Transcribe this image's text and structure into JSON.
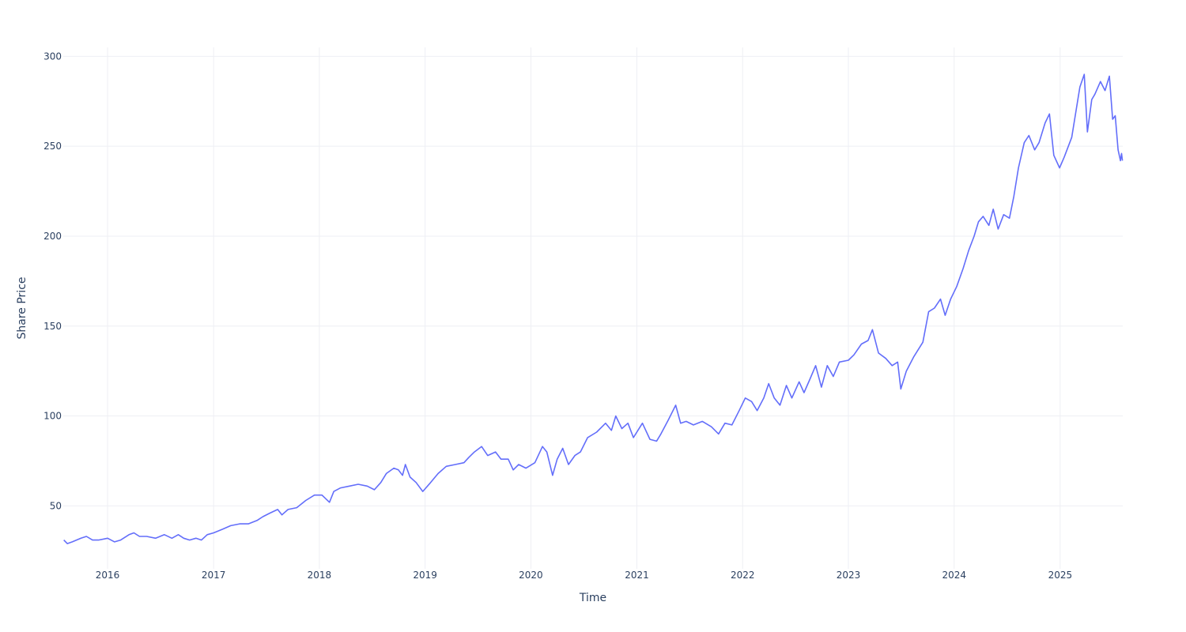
{
  "chart_data": {
    "type": "line",
    "title": "",
    "xlabel": "Time",
    "ylabel": "Share Price",
    "x_range": [
      "2015-08-01",
      "2025-08-05"
    ],
    "ylim": [
      15,
      305
    ],
    "x_ticks": [
      {
        "date": "2016-01-01",
        "label": "2016"
      },
      {
        "date": "2017-01-01",
        "label": "2017"
      },
      {
        "date": "2018-01-01",
        "label": "2018"
      },
      {
        "date": "2019-01-01",
        "label": "2019"
      },
      {
        "date": "2020-01-01",
        "label": "2020"
      },
      {
        "date": "2021-01-01",
        "label": "2021"
      },
      {
        "date": "2022-01-01",
        "label": "2022"
      },
      {
        "date": "2023-01-01",
        "label": "2023"
      },
      {
        "date": "2024-01-01",
        "label": "2024"
      },
      {
        "date": "2025-01-01",
        "label": "2025"
      }
    ],
    "y_ticks": [
      50,
      100,
      150,
      200,
      250,
      300
    ],
    "grid": true,
    "legend": "none",
    "series": [
      {
        "color": "#636efa",
        "points": [
          [
            "2015-08-03",
            31
          ],
          [
            "2015-08-15",
            29
          ],
          [
            "2015-09-01",
            30
          ],
          [
            "2015-10-01",
            32
          ],
          [
            "2015-10-20",
            33
          ],
          [
            "2015-11-10",
            31
          ],
          [
            "2015-12-01",
            31
          ],
          [
            "2016-01-01",
            32
          ],
          [
            "2016-01-25",
            30
          ],
          [
            "2016-02-15",
            31
          ],
          [
            "2016-03-15",
            34
          ],
          [
            "2016-04-01",
            35
          ],
          [
            "2016-04-20",
            33
          ],
          [
            "2016-05-15",
            33
          ],
          [
            "2016-06-15",
            32
          ],
          [
            "2016-07-15",
            34
          ],
          [
            "2016-08-10",
            32
          ],
          [
            "2016-09-01",
            34
          ],
          [
            "2016-09-20",
            32
          ],
          [
            "2016-10-10",
            31
          ],
          [
            "2016-11-01",
            32
          ],
          [
            "2016-11-20",
            31
          ],
          [
            "2016-12-10",
            34
          ],
          [
            "2017-01-01",
            35
          ],
          [
            "2017-02-01",
            37
          ],
          [
            "2017-03-01",
            39
          ],
          [
            "2017-04-01",
            40
          ],
          [
            "2017-05-01",
            40
          ],
          [
            "2017-06-01",
            42
          ],
          [
            "2017-06-20",
            44
          ],
          [
            "2017-07-15",
            46
          ],
          [
            "2017-08-10",
            48
          ],
          [
            "2017-08-25",
            45
          ],
          [
            "2017-09-15",
            48
          ],
          [
            "2017-10-15",
            49
          ],
          [
            "2017-11-15",
            53
          ],
          [
            "2017-12-15",
            56
          ],
          [
            "2018-01-10",
            56
          ],
          [
            "2018-02-05",
            52
          ],
          [
            "2018-02-20",
            58
          ],
          [
            "2018-03-15",
            60
          ],
          [
            "2018-04-15",
            61
          ],
          [
            "2018-05-15",
            62
          ],
          [
            "2018-06-15",
            61
          ],
          [
            "2018-07-10",
            59
          ],
          [
            "2018-08-01",
            63
          ],
          [
            "2018-08-20",
            68
          ],
          [
            "2018-09-15",
            71
          ],
          [
            "2018-10-01",
            70
          ],
          [
            "2018-10-15",
            67
          ],
          [
            "2018-10-25",
            73
          ],
          [
            "2018-11-10",
            66
          ],
          [
            "2018-12-01",
            63
          ],
          [
            "2018-12-24",
            58
          ],
          [
            "2019-01-20",
            63
          ],
          [
            "2019-02-15",
            68
          ],
          [
            "2019-03-15",
            72
          ],
          [
            "2019-04-15",
            73
          ],
          [
            "2019-05-15",
            74
          ],
          [
            "2019-06-01",
            77
          ],
          [
            "2019-06-20",
            80
          ],
          [
            "2019-07-15",
            83
          ],
          [
            "2019-08-05",
            78
          ],
          [
            "2019-09-01",
            80
          ],
          [
            "2019-09-20",
            76
          ],
          [
            "2019-10-15",
            76
          ],
          [
            "2019-11-01",
            70
          ],
          [
            "2019-11-20",
            73
          ],
          [
            "2019-12-15",
            71
          ],
          [
            "2020-01-15",
            74
          ],
          [
            "2020-02-10",
            83
          ],
          [
            "2020-02-25",
            80
          ],
          [
            "2020-03-16",
            67
          ],
          [
            "2020-04-01",
            76
          ],
          [
            "2020-04-20",
            82
          ],
          [
            "2020-05-10",
            73
          ],
          [
            "2020-06-01",
            78
          ],
          [
            "2020-06-20",
            80
          ],
          [
            "2020-07-15",
            88
          ],
          [
            "2020-08-15",
            91
          ],
          [
            "2020-09-15",
            96
          ],
          [
            "2020-10-05",
            92
          ],
          [
            "2020-10-20",
            100
          ],
          [
            "2020-11-10",
            93
          ],
          [
            "2020-12-01",
            96
          ],
          [
            "2020-12-20",
            88
          ],
          [
            "2021-01-20",
            96
          ],
          [
            "2021-02-15",
            87
          ],
          [
            "2021-03-10",
            86
          ],
          [
            "2021-03-25",
            90
          ],
          [
            "2021-04-20",
            98
          ],
          [
            "2021-05-15",
            106
          ],
          [
            "2021-06-01",
            96
          ],
          [
            "2021-06-20",
            97
          ],
          [
            "2021-07-15",
            95
          ],
          [
            "2021-08-15",
            97
          ],
          [
            "2021-09-15",
            94
          ],
          [
            "2021-10-10",
            90
          ],
          [
            "2021-11-01",
            96
          ],
          [
            "2021-11-25",
            95
          ],
          [
            "2021-12-20",
            103
          ],
          [
            "2022-01-10",
            110
          ],
          [
            "2022-02-01",
            108
          ],
          [
            "2022-02-20",
            103
          ],
          [
            "2022-03-15",
            110
          ],
          [
            "2022-04-01",
            118
          ],
          [
            "2022-04-20",
            110
          ],
          [
            "2022-05-10",
            106
          ],
          [
            "2022-06-01",
            117
          ],
          [
            "2022-06-20",
            110
          ],
          [
            "2022-07-15",
            119
          ],
          [
            "2022-08-01",
            113
          ],
          [
            "2022-08-20",
            120
          ],
          [
            "2022-09-10",
            128
          ],
          [
            "2022-09-30",
            116
          ],
          [
            "2022-10-20",
            128
          ],
          [
            "2022-11-10",
            122
          ],
          [
            "2022-12-01",
            130
          ],
          [
            "2023-01-01",
            131
          ],
          [
            "2023-01-20",
            134
          ],
          [
            "2023-02-15",
            140
          ],
          [
            "2023-03-10",
            142
          ],
          [
            "2023-03-25",
            148
          ],
          [
            "2023-04-15",
            135
          ],
          [
            "2023-05-10",
            132
          ],
          [
            "2023-06-01",
            128
          ],
          [
            "2023-06-20",
            130
          ],
          [
            "2023-07-01",
            115
          ],
          [
            "2023-07-20",
            125
          ],
          [
            "2023-08-15",
            133
          ],
          [
            "2023-09-15",
            141
          ],
          [
            "2023-10-05",
            158
          ],
          [
            "2023-10-25",
            160
          ],
          [
            "2023-11-15",
            165
          ],
          [
            "2023-12-01",
            156
          ],
          [
            "2023-12-20",
            165
          ],
          [
            "2024-01-10",
            172
          ],
          [
            "2024-02-01",
            182
          ],
          [
            "2024-02-20",
            192
          ],
          [
            "2024-03-10",
            200
          ],
          [
            "2024-03-25",
            208
          ],
          [
            "2024-04-10",
            211
          ],
          [
            "2024-04-30",
            206
          ],
          [
            "2024-05-15",
            215
          ],
          [
            "2024-06-01",
            204
          ],
          [
            "2024-06-20",
            212
          ],
          [
            "2024-07-10",
            210
          ],
          [
            "2024-07-25",
            222
          ],
          [
            "2024-08-10",
            238
          ],
          [
            "2024-08-30",
            252
          ],
          [
            "2024-09-15",
            256
          ],
          [
            "2024-10-05",
            248
          ],
          [
            "2024-10-20",
            252
          ],
          [
            "2024-11-10",
            263
          ],
          [
            "2024-11-25",
            268
          ],
          [
            "2024-12-10",
            245
          ],
          [
            "2024-12-30",
            238
          ],
          [
            "2025-01-15",
            244
          ],
          [
            "2025-02-10",
            255
          ],
          [
            "2025-02-25",
            270
          ],
          [
            "2025-03-10",
            283
          ],
          [
            "2025-03-25",
            290
          ],
          [
            "2025-04-05",
            258
          ],
          [
            "2025-04-20",
            276
          ],
          [
            "2025-05-01",
            279
          ],
          [
            "2025-05-20",
            286
          ],
          [
            "2025-06-05",
            281
          ],
          [
            "2025-06-20",
            289
          ],
          [
            "2025-07-01",
            265
          ],
          [
            "2025-07-10",
            267
          ],
          [
            "2025-07-20",
            248
          ],
          [
            "2025-07-28",
            242
          ],
          [
            "2025-08-01",
            246
          ],
          [
            "2025-08-04",
            242
          ]
        ]
      }
    ]
  }
}
